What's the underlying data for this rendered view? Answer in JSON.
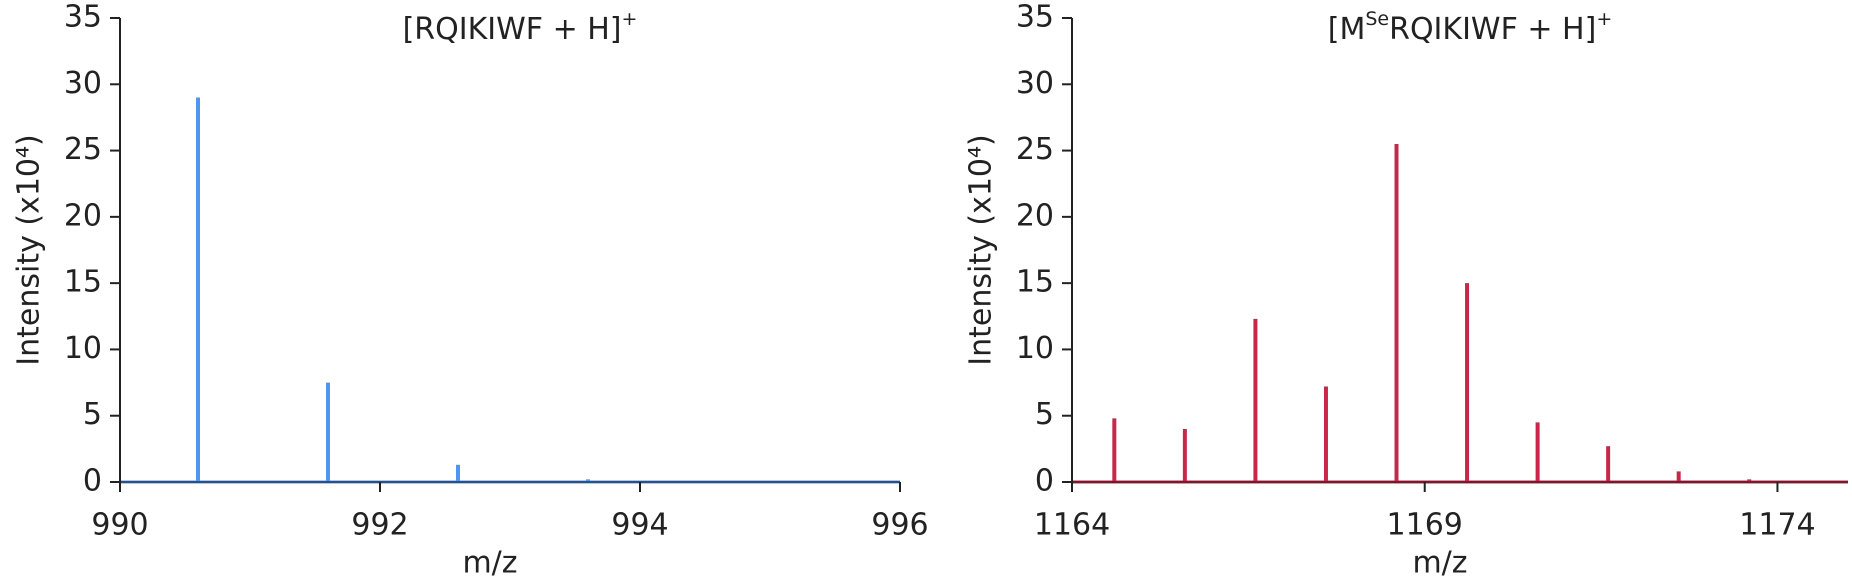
{
  "chart_data": [
    {
      "type": "stick",
      "title": [
        {
          "text": "[RQIKIWF + H]"
        },
        {
          "text": "+",
          "sup": true
        }
      ],
      "x_label": "m/z",
      "y_label": "Intensity (x10⁴)",
      "x": [
        990.6,
        991.6,
        992.6,
        993.6
      ],
      "series": [
        {
          "color": "#4f96f0",
          "values": [
            29,
            7.5,
            1.3,
            0.2
          ]
        }
      ],
      "xlim": [
        990,
        996
      ],
      "xticks": [
        990,
        992,
        994,
        996
      ],
      "ylim": [
        0,
        35
      ],
      "yticks": [
        0,
        5,
        10,
        15,
        20,
        25,
        30,
        35
      ]
    },
    {
      "type": "stick",
      "title": [
        {
          "text": "[M"
        },
        {
          "text": "Se",
          "sup": true
        },
        {
          "text": "RQIKIWF + H]"
        },
        {
          "text": "+",
          "sup": true
        }
      ],
      "x_label": "m/z",
      "y_label": "Intensity (x10⁴)",
      "x": [
        1164.6,
        1165.6,
        1166.6,
        1167.6,
        1168.6,
        1169.6,
        1170.6,
        1171.6,
        1172.6,
        1173.6
      ],
      "series": [
        {
          "color": "#c8274a",
          "values": [
            4.8,
            4.0,
            12.3,
            7.2,
            25.5,
            15.0,
            4.5,
            2.7,
            0.8,
            0.2
          ]
        }
      ],
      "xlim": [
        1164,
        1175
      ],
      "xticks": [
        1164,
        1169,
        1174
      ],
      "ylim": [
        0,
        35
      ],
      "yticks": [
        0,
        5,
        10,
        15,
        20,
        25,
        30,
        35
      ]
    }
  ]
}
